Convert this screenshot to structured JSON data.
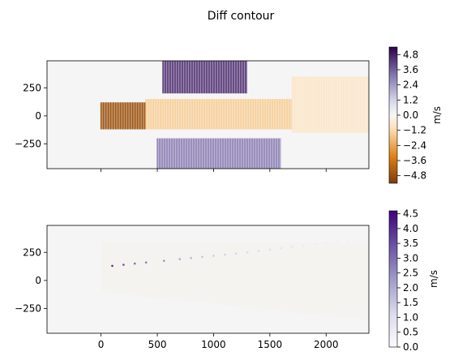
{
  "chart_data": [
    {
      "type": "heatmap",
      "title": "Diff contour",
      "xlim": [
        -480,
        2380
      ],
      "ylim": [
        -470,
        490
      ],
      "x_ticks": [
        0,
        500,
        1000,
        1500,
        2000
      ],
      "y_ticks": [
        250,
        0,
        -250
      ],
      "y_tick_labels": [
        "250",
        "0",
        "−250"
      ],
      "x_tick_labels_shown": false,
      "colormap": "PuOr",
      "colorbar": {
        "label": "m/s",
        "range": [
          -5.4,
          5.4
        ],
        "ticks": [
          4.8,
          3.6,
          2.4,
          1.2,
          0.0,
          -1.2,
          -2.4,
          -3.6,
          -4.8
        ],
        "tick_labels": [
          "4.8",
          "3.6",
          "2.4",
          "1.2",
          "0.0",
          "−1.2",
          "−2.4",
          "−3.6",
          "−4.8"
        ]
      },
      "regions": [
        {
          "name": "strong-negative",
          "x": [
            0,
            400
          ],
          "y": [
            -120,
            120
          ],
          "value": -4.8
        },
        {
          "name": "moderate-negative",
          "x": [
            400,
            1700
          ],
          "y": [
            -120,
            150
          ],
          "value": -1.5
        },
        {
          "name": "weak-negative-far",
          "x": [
            1700,
            2380
          ],
          "y": [
            -150,
            350
          ],
          "value": -0.8
        },
        {
          "name": "strong-positive-top",
          "x": [
            550,
            1300
          ],
          "y": [
            200,
            490
          ],
          "value": 4.5
        },
        {
          "name": "positive-bottom",
          "x": [
            500,
            1600
          ],
          "y": [
            -470,
            -200
          ],
          "value": 3.0
        }
      ]
    },
    {
      "type": "heatmap",
      "title": "",
      "xlim": [
        -480,
        2380
      ],
      "ylim": [
        -470,
        490
      ],
      "x_ticks": [
        0,
        500,
        1000,
        1500,
        2000
      ],
      "x_tick_labels": [
        "0",
        "500",
        "1000",
        "1500",
        "2000"
      ],
      "y_ticks": [
        250,
        0,
        -250
      ],
      "y_tick_labels": [
        "250",
        "0",
        "−250"
      ],
      "colormap": "Purples",
      "colorbar": {
        "label": "m/s",
        "range": [
          0.0,
          4.6
        ],
        "ticks": [
          4.5,
          4.0,
          3.5,
          3.0,
          2.5,
          2.0,
          1.5,
          1.0,
          0.5,
          0.0
        ],
        "tick_labels": [
          "4.5",
          "4.0",
          "3.5",
          "3.0",
          "2.5",
          "2.0",
          "1.5",
          "1.0",
          "0.5",
          "0.0"
        ]
      },
      "points": [
        {
          "x": 100,
          "y": 130,
          "value": 4.0
        },
        {
          "x": 200,
          "y": 140,
          "value": 3.5
        },
        {
          "x": 300,
          "y": 150,
          "value": 3.0
        },
        {
          "x": 400,
          "y": 160,
          "value": 2.7
        },
        {
          "x": 560,
          "y": 175,
          "value": 2.4
        },
        {
          "x": 700,
          "y": 190,
          "value": 2.0
        },
        {
          "x": 800,
          "y": 200,
          "value": 1.8
        },
        {
          "x": 900,
          "y": 210,
          "value": 1.6
        },
        {
          "x": 1000,
          "y": 220,
          "value": 1.4
        },
        {
          "x": 1100,
          "y": 230,
          "value": 1.3
        },
        {
          "x": 1200,
          "y": 240,
          "value": 1.2
        },
        {
          "x": 1300,
          "y": 250,
          "value": 1.1
        },
        {
          "x": 1400,
          "y": 262,
          "value": 1.0
        },
        {
          "x": 1500,
          "y": 274,
          "value": 0.9
        },
        {
          "x": 1600,
          "y": 286,
          "value": 0.8
        },
        {
          "x": 1700,
          "y": 298,
          "value": 0.7
        },
        {
          "x": 1800,
          "y": 310,
          "value": 0.6
        },
        {
          "x": 1900,
          "y": 322,
          "value": 0.55
        },
        {
          "x": 2000,
          "y": 334,
          "value": 0.5
        },
        {
          "x": 2100,
          "y": 344,
          "value": 0.45
        },
        {
          "x": 2200,
          "y": 354,
          "value": 0.4
        },
        {
          "x": 2300,
          "y": 362,
          "value": 0.35
        }
      ]
    }
  ]
}
